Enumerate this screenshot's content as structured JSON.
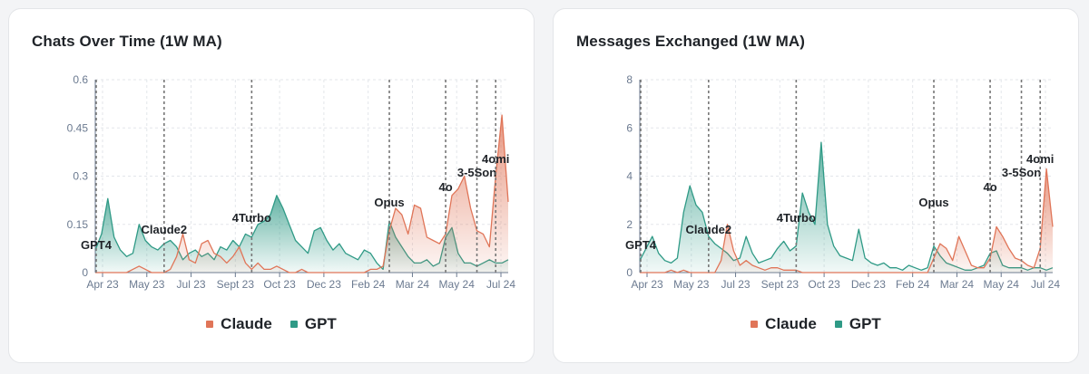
{
  "colors": {
    "claude": "#e07558",
    "gpt": "#2f9a86",
    "grid": "#e3e6ea",
    "axis": "#6b7a90",
    "event": "#777777"
  },
  "charts": [
    {
      "title": "Chats Over Time (1W MA)",
      "legend": [
        {
          "name": "Claude",
          "color": "#e07558"
        },
        {
          "name": "GPT",
          "color": "#2f9a86"
        }
      ],
      "chart_data": {
        "type": "area",
        "x_tick_labels": [
          "Apr 23",
          "May 23",
          "Jul 23",
          "Sept 23",
          "Oct 23",
          "Dec 23",
          "Feb 24",
          "Mar 24",
          "May 24",
          "Jul 24"
        ],
        "y_tick_labels": [
          "0",
          "0.15",
          "0.3",
          "0.45",
          "0.6"
        ],
        "ylim": [
          0,
          0.6
        ],
        "xlim": [
          0,
          66
        ],
        "event_markers": [
          {
            "label": "GPT4",
            "week": 0
          },
          {
            "label": "Claude2",
            "week": 11
          },
          {
            "label": "4Turbo",
            "week": 25
          },
          {
            "label": "Opus",
            "week": 47
          },
          {
            "label": "4o",
            "week": 56
          },
          {
            "label": "3-5Son",
            "week": 61
          },
          {
            "label": "4omi",
            "week": 64
          }
        ],
        "series": [
          {
            "name": "GPT",
            "values": [
              0.07,
              0.12,
              0.23,
              0.11,
              0.07,
              0.05,
              0.06,
              0.15,
              0.1,
              0.08,
              0.07,
              0.09,
              0.1,
              0.08,
              0.04,
              0.06,
              0.07,
              0.05,
              0.06,
              0.04,
              0.08,
              0.07,
              0.1,
              0.08,
              0.12,
              0.11,
              0.15,
              0.16,
              0.18,
              0.24,
              0.2,
              0.15,
              0.1,
              0.08,
              0.06,
              0.13,
              0.14,
              0.1,
              0.07,
              0.09,
              0.06,
              0.05,
              0.04,
              0.07,
              0.06,
              0.03,
              0.01,
              0.16,
              0.11,
              0.08,
              0.05,
              0.03,
              0.03,
              0.04,
              0.02,
              0.03,
              0.11,
              0.14,
              0.06,
              0.03,
              0.03,
              0.02,
              0.03,
              0.04,
              0.03,
              0.03,
              0.04
            ]
          },
          {
            "name": "Claude",
            "values": [
              0,
              0,
              0,
              0,
              0,
              0,
              0.01,
              0.02,
              0.01,
              0,
              0,
              0,
              0.01,
              0.05,
              0.12,
              0.04,
              0.03,
              0.09,
              0.1,
              0.06,
              0.05,
              0.03,
              0.05,
              0.08,
              0.03,
              0.01,
              0.03,
              0.01,
              0.01,
              0.02,
              0.01,
              0,
              0,
              0.01,
              0,
              0,
              0,
              0,
              0,
              0,
              0,
              0,
              0,
              0,
              0.01,
              0.01,
              0.02,
              0.13,
              0.2,
              0.18,
              0.12,
              0.21,
              0.2,
              0.11,
              0.1,
              0.09,
              0.12,
              0.24,
              0.26,
              0.3,
              0.2,
              0.13,
              0.12,
              0.08,
              0.3,
              0.49,
              0.22
            ]
          }
        ]
      }
    },
    {
      "title": "Messages Exchanged (1W MA)",
      "legend": [
        {
          "name": "Claude",
          "color": "#e07558"
        },
        {
          "name": "GPT",
          "color": "#2f9a86"
        }
      ],
      "chart_data": {
        "type": "area",
        "x_tick_labels": [
          "Apr 23",
          "May 23",
          "Jul 23",
          "Sept 23",
          "Oct 23",
          "Dec 23",
          "Feb 24",
          "Mar 24",
          "May 24",
          "Jul 24"
        ],
        "y_tick_labels": [
          "0",
          "2",
          "4",
          "6",
          "8"
        ],
        "ylim": [
          0,
          8
        ],
        "xlim": [
          0,
          66
        ],
        "event_markers": [
          {
            "label": "GPT4",
            "week": 0
          },
          {
            "label": "Claude2",
            "week": 11
          },
          {
            "label": "4Turbo",
            "week": 25
          },
          {
            "label": "Opus",
            "week": 47
          },
          {
            "label": "4o",
            "week": 56
          },
          {
            "label": "3-5Son",
            "week": 61
          },
          {
            "label": "4omi",
            "week": 64
          }
        ],
        "series": [
          {
            "name": "GPT",
            "values": [
              0.5,
              1.0,
              1.5,
              0.8,
              0.5,
              0.4,
              0.6,
              2.5,
              3.6,
              2.8,
              2.5,
              1.5,
              1.2,
              1.0,
              0.8,
              0.5,
              0.6,
              1.5,
              0.8,
              0.4,
              0.5,
              0.6,
              1.0,
              1.3,
              0.9,
              1.1,
              3.3,
              2.5,
              2.0,
              5.4,
              2.0,
              1.1,
              0.7,
              0.6,
              0.5,
              1.8,
              0.6,
              0.4,
              0.3,
              0.4,
              0.2,
              0.2,
              0.1,
              0.3,
              0.2,
              0.1,
              0.2,
              1.1,
              0.7,
              0.4,
              0.3,
              0.2,
              0.1,
              0.1,
              0.2,
              0.3,
              0.8,
              0.9,
              0.3,
              0.2,
              0.2,
              0.2,
              0.1,
              0.2,
              0.2,
              0.1,
              0.2
            ]
          },
          {
            "name": "Claude",
            "values": [
              0,
              0,
              0,
              0,
              0,
              0.1,
              0,
              0.1,
              0,
              0,
              0,
              0,
              0,
              0.5,
              2.0,
              0.9,
              0.3,
              0.5,
              0.3,
              0.2,
              0.1,
              0.2,
              0.2,
              0.1,
              0.1,
              0.1,
              0,
              0,
              0,
              0,
              0,
              0,
              0,
              0,
              0,
              0,
              0,
              0,
              0,
              0,
              0,
              0,
              0,
              0,
              0,
              0,
              0,
              0.6,
              1.2,
              1.0,
              0.5,
              1.5,
              0.9,
              0.3,
              0.2,
              0.2,
              0.6,
              1.9,
              1.5,
              1.0,
              0.6,
              0.5,
              0.3,
              0.2,
              1.0,
              4.3,
              1.9
            ]
          }
        ]
      }
    }
  ]
}
